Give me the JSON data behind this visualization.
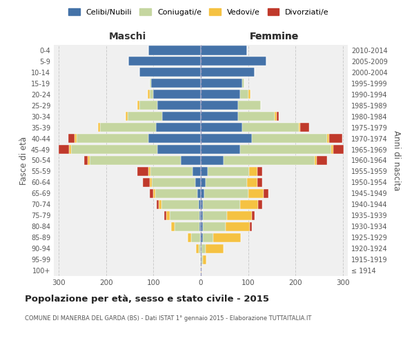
{
  "age_groups": [
    "100+",
    "95-99",
    "90-94",
    "85-89",
    "80-84",
    "75-79",
    "70-74",
    "65-69",
    "60-64",
    "55-59",
    "50-54",
    "45-49",
    "40-44",
    "35-39",
    "30-34",
    "25-29",
    "20-24",
    "15-19",
    "10-14",
    "5-9",
    "0-4"
  ],
  "birth_years": [
    "≤ 1914",
    "1915-1919",
    "1920-1924",
    "1925-1929",
    "1930-1934",
    "1935-1939",
    "1940-1944",
    "1945-1949",
    "1950-1954",
    "1955-1959",
    "1960-1964",
    "1965-1969",
    "1970-1974",
    "1975-1979",
    "1980-1984",
    "1985-1989",
    "1990-1994",
    "1995-1999",
    "2000-2004",
    "2005-2009",
    "2010-2014"
  ],
  "male_celibi": [
    0,
    0,
    0,
    2,
    3,
    3,
    5,
    8,
    12,
    18,
    42,
    92,
    110,
    95,
    82,
    92,
    100,
    105,
    130,
    153,
    110
  ],
  "male_coniugati": [
    0,
    2,
    5,
    18,
    52,
    62,
    78,
    88,
    92,
    88,
    192,
    182,
    152,
    118,
    72,
    38,
    8,
    3,
    0,
    0,
    0
  ],
  "male_vedovi": [
    0,
    0,
    5,
    8,
    8,
    8,
    6,
    4,
    4,
    4,
    4,
    4,
    4,
    4,
    4,
    4,
    4,
    0,
    0,
    0,
    0
  ],
  "male_divorziati": [
    0,
    0,
    0,
    0,
    0,
    4,
    4,
    8,
    14,
    24,
    8,
    22,
    14,
    0,
    0,
    0,
    0,
    0,
    0,
    0,
    0
  ],
  "female_celibi": [
    0,
    2,
    2,
    4,
    4,
    4,
    5,
    8,
    10,
    14,
    48,
    83,
    108,
    88,
    78,
    78,
    83,
    88,
    113,
    138,
    98
  ],
  "female_coniugati": [
    0,
    2,
    8,
    22,
    48,
    52,
    78,
    92,
    88,
    88,
    192,
    192,
    158,
    118,
    78,
    48,
    18,
    4,
    0,
    0,
    0
  ],
  "female_vedovi": [
    2,
    8,
    38,
    58,
    52,
    52,
    38,
    32,
    22,
    18,
    4,
    4,
    4,
    4,
    4,
    0,
    4,
    0,
    0,
    0,
    0
  ],
  "female_divorziati": [
    0,
    0,
    0,
    0,
    4,
    6,
    8,
    10,
    10,
    10,
    22,
    22,
    28,
    18,
    4,
    0,
    0,
    0,
    0,
    0,
    0
  ],
  "color_celibi": "#4472a8",
  "color_coniugati": "#c5d6a0",
  "color_vedovi": "#f5c242",
  "color_divorziati": "#c0392b",
  "bg_color": "#f0f0f0",
  "xlim": 310,
  "title": "Popolazione per età, sesso e stato civile - 2015",
  "subtitle": "COMUNE DI MANERBA DEL GARDA (BS) - Dati ISTAT 1° gennaio 2015 - Elaborazione TUTTAITALIA.IT",
  "ylabel_left": "Fasce di età",
  "ylabel_right": "Anni di nascita"
}
